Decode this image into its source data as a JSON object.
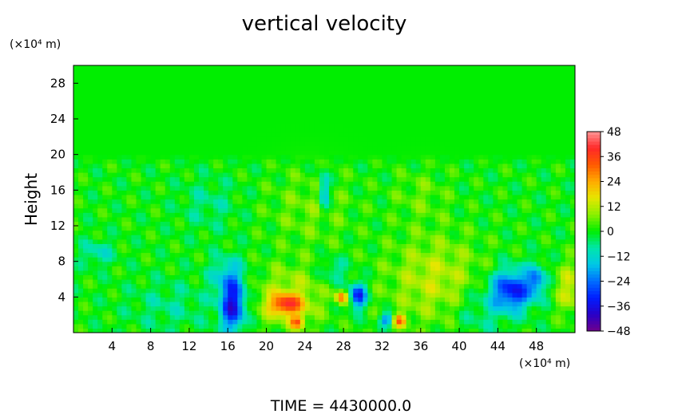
{
  "chart_data": {
    "type": "heatmap",
    "title": "vertical velocity",
    "xlabel": "",
    "ylabel": "Height",
    "x_unit": "(×10⁴ m)",
    "y_unit": "(×10⁴ m)",
    "xlim": [
      0,
      52
    ],
    "ylim": [
      0,
      30
    ],
    "x_ticks": [
      "4",
      "8",
      "12",
      "16",
      "20",
      "24",
      "28",
      "32",
      "36",
      "40",
      "44",
      "48"
    ],
    "y_ticks": [
      "4",
      "8",
      "12",
      "16",
      "20",
      "24",
      "28"
    ],
    "colorbar": {
      "range": [
        -48,
        48
      ],
      "ticks": [
        "48",
        "36",
        "24",
        "12",
        "0",
        "−12",
        "−24",
        "−36",
        "−48"
      ]
    },
    "background_value": 0,
    "features": [
      {
        "x": 16.5,
        "y": 3.0,
        "sx": 0.9,
        "sy": 2.0,
        "value": -36
      },
      {
        "x": 16.0,
        "y": 6.5,
        "sx": 1.2,
        "sy": 1.5,
        "value": -14
      },
      {
        "x": 22.0,
        "y": 3.2,
        "sx": 1.2,
        "sy": 0.8,
        "value": 30
      },
      {
        "x": 23.2,
        "y": 1.2,
        "sx": 0.5,
        "sy": 0.5,
        "value": 26
      },
      {
        "x": 22.5,
        "y": 4.0,
        "sx": 2.5,
        "sy": 2.5,
        "value": 12
      },
      {
        "x": 27.8,
        "y": 4.0,
        "sx": 0.45,
        "sy": 0.5,
        "value": 28
      },
      {
        "x": 29.5,
        "y": 4.2,
        "sx": 0.6,
        "sy": 1.0,
        "value": -34
      },
      {
        "x": 32.5,
        "y": 1.5,
        "sx": 0.5,
        "sy": 0.5,
        "value": -26
      },
      {
        "x": 33.8,
        "y": 1.4,
        "sx": 0.5,
        "sy": 0.5,
        "value": 28
      },
      {
        "x": 37.5,
        "y": 6.0,
        "sx": 3.5,
        "sy": 3.5,
        "value": 12
      },
      {
        "x": 45.5,
        "y": 4.8,
        "sx": 1.5,
        "sy": 1.6,
        "value": -34
      },
      {
        "x": 48.0,
        "y": 6.0,
        "sx": 0.6,
        "sy": 1.2,
        "value": -20
      },
      {
        "x": 51.5,
        "y": 5.0,
        "sx": 1.0,
        "sy": 2.0,
        "value": 14
      },
      {
        "x": 26.0,
        "y": 16.0,
        "sx": 0.4,
        "sy": 1.5,
        "value": -20
      },
      {
        "x": 24.5,
        "y": 14.0,
        "sx": 3.0,
        "sy": 3.0,
        "value": 6
      },
      {
        "x": 2.5,
        "y": 9.0,
        "sx": 1.2,
        "sy": 1.0,
        "value": -10
      },
      {
        "x": 27.0,
        "y": 7.0,
        "sx": 1.0,
        "sy": 1.0,
        "value": -10
      },
      {
        "x": 10.0,
        "y": 3.0,
        "sx": 3.0,
        "sy": 2.0,
        "value": -6
      },
      {
        "x": 42.0,
        "y": 2.5,
        "sx": 2.0,
        "sy": 2.0,
        "value": -8
      },
      {
        "x": 14.0,
        "y": 14.5,
        "sx": 2.0,
        "sy": 2.0,
        "value": -6
      },
      {
        "x": 36.0,
        "y": 15.5,
        "sx": 2.0,
        "sy": 2.0,
        "value": 5
      }
    ],
    "grid": false,
    "legend": "right"
  },
  "footer": {
    "time_label": "TIME  =  4430000.0"
  }
}
